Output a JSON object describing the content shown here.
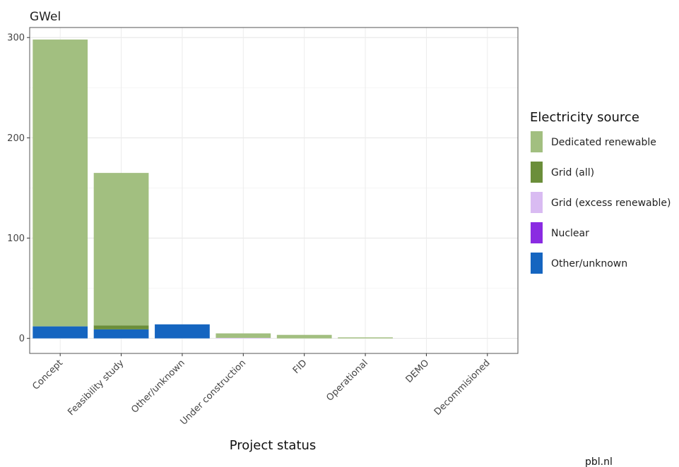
{
  "chart_data": {
    "type": "bar",
    "stacked": true,
    "title": "",
    "ylabel": "GWel",
    "xlabel": "Project status",
    "ylim": [
      -15,
      310
    ],
    "yticks": [
      0,
      100,
      200,
      300
    ],
    "grid": true,
    "categories": [
      "Concept",
      "Feasibility study",
      "Other/unknown",
      "Under construction",
      "FID",
      "Operational",
      "DEMO",
      "Decommisioned"
    ],
    "series": [
      {
        "name": "Other/unknown",
        "color": "#1565C0",
        "values": [
          12,
          9,
          14,
          0,
          0,
          0,
          0,
          0
        ]
      },
      {
        "name": "Nuclear",
        "color": "#8A2BE2",
        "values": [
          0,
          0,
          0,
          0,
          0,
          0,
          0,
          0
        ]
      },
      {
        "name": "Grid (excess renewable)",
        "color": "#D9BBF2",
        "values": [
          0,
          0,
          0,
          0.5,
          0,
          0,
          0,
          0
        ]
      },
      {
        "name": "Grid (all)",
        "color": "#6B8E3A",
        "values": [
          0,
          4,
          0,
          0,
          0,
          0,
          0,
          0
        ]
      },
      {
        "name": "Dedicated renewable",
        "color": "#A2BF80",
        "values": [
          286,
          152,
          0,
          4.5,
          3.5,
          1,
          0,
          0
        ]
      }
    ],
    "legend": {
      "title": "Electricity source",
      "placement": "right",
      "items": [
        {
          "label": "Dedicated renewable",
          "color": "#A2BF80"
        },
        {
          "label": "Grid (all)",
          "color": "#6B8E3A"
        },
        {
          "label": "Grid (excess renewable)",
          "color": "#D9BBF2"
        },
        {
          "label": "Nuclear",
          "color": "#8A2BE2"
        },
        {
          "label": "Other/unknown",
          "color": "#1565C0"
        }
      ]
    }
  },
  "source_label": "pbl.nl"
}
